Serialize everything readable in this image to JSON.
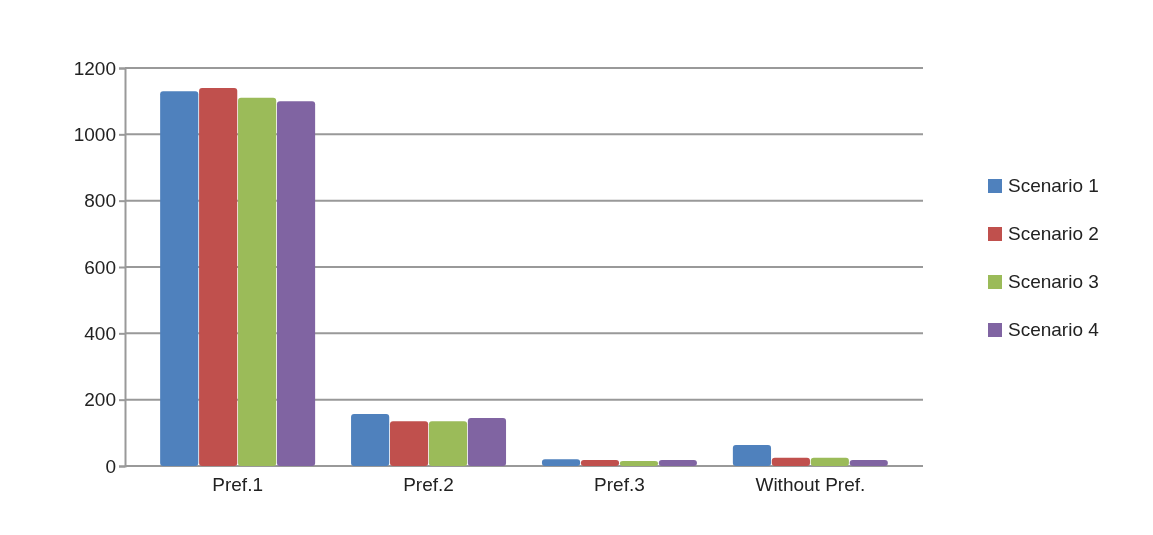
{
  "chart_data": {
    "type": "bar",
    "categories": [
      "Pref.1",
      "Pref.2",
      "Pref.3",
      "Without Pref."
    ],
    "series": [
      {
        "name": "Scenario 1",
        "color": "#4f81bd",
        "values": [
          1130,
          157,
          20,
          63
        ]
      },
      {
        "name": "Scenario 2",
        "color": "#c0504d",
        "values": [
          1140,
          135,
          18,
          25
        ]
      },
      {
        "name": "Scenario 3",
        "color": "#9bbb59",
        "values": [
          1110,
          135,
          15,
          25
        ]
      },
      {
        "name": "Scenario 4",
        "color": "#8064a2",
        "values": [
          1100,
          145,
          18,
          18
        ]
      }
    ],
    "ylim": [
      0,
      1200
    ],
    "yticks": [
      0,
      200,
      400,
      600,
      800,
      1000,
      1200
    ],
    "grid": "y",
    "legend": "right"
  }
}
